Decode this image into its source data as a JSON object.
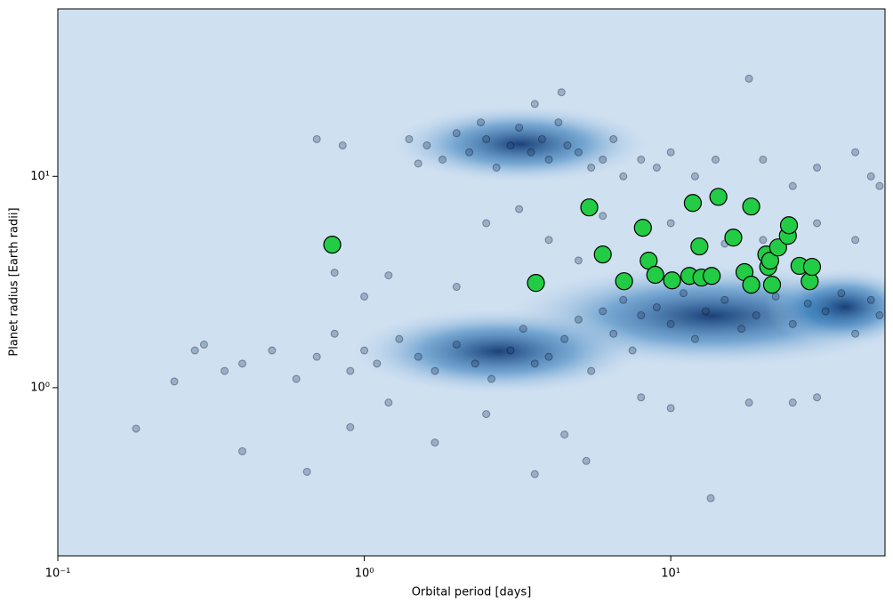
{
  "chart_data": {
    "type": "scatter",
    "xlabel": "Orbital period [days]",
    "ylabel": "Planet radius [Earth radii]",
    "xscale": "log",
    "yscale": "log",
    "xlim": [
      0.1,
      50
    ],
    "ylim": [
      0.16,
      62
    ],
    "xticks": [
      {
        "value": 0.1,
        "label": "10⁻¹"
      },
      {
        "value": 1,
        "label": "10⁰"
      },
      {
        "value": 10,
        "label": "10¹"
      }
    ],
    "yticks": [
      {
        "value": 1,
        "label": "10⁰"
      },
      {
        "value": 10,
        "label": "10¹"
      }
    ],
    "series": [
      {
        "color": "#1f3a6e",
        "x": [
          1.6,
          1.8,
          2.0,
          2.2,
          2.5,
          2.7,
          3.0,
          3.2,
          3.5,
          3.8,
          4.0,
          4.3,
          4.6,
          5.0,
          5.5,
          6.0,
          6.5,
          7.0,
          8.0,
          9.0,
          10,
          12,
          14,
          1.4,
          1.5,
          2.4,
          3.6,
          4.4,
          0.7,
          0.85,
          2.5,
          3.2,
          4,
          5,
          6,
          8,
          10,
          15,
          20,
          30,
          40,
          1.2,
          1.0,
          0.8,
          2.0,
          0.3,
          0.35,
          0.4,
          0.5,
          0.6,
          0.7,
          0.8,
          0.9,
          1.0,
          1.1,
          1.3,
          1.5,
          1.7,
          2.0,
          2.3,
          2.6,
          3.0,
          3.3,
          3.6,
          4.0,
          4.5,
          5.0,
          5.5,
          6.0,
          6.5,
          7.0,
          7.5,
          8.0,
          9.0,
          10,
          11,
          12,
          13,
          15,
          17,
          19,
          22,
          25,
          28,
          32,
          36,
          40,
          45,
          48,
          0.18,
          0.24,
          0.28,
          0.4,
          0.65,
          0.9,
          1.7,
          3.6,
          5.3,
          13.5,
          18,
          25,
          30,
          8,
          10,
          4.5,
          2.5,
          1.2,
          18,
          20,
          25,
          30,
          40,
          45,
          48
        ],
        "values": [
          14,
          12,
          16,
          13,
          15,
          11,
          14,
          17,
          13,
          15,
          12,
          18,
          14,
          13,
          11,
          12,
          15,
          10,
          12,
          11,
          13,
          10,
          12,
          15,
          11.5,
          18,
          22,
          25,
          15,
          14,
          6,
          7,
          5,
          4,
          6.5,
          5.5,
          6,
          4.8,
          5,
          6,
          5,
          3.4,
          2.7,
          3.5,
          3.0,
          1.6,
          1.2,
          1.3,
          1.5,
          1.1,
          1.4,
          1.8,
          1.2,
          1.5,
          1.3,
          1.7,
          1.4,
          1.2,
          1.6,
          1.3,
          1.1,
          1.5,
          1.9,
          1.3,
          1.4,
          1.7,
          2.1,
          1.2,
          2.3,
          1.8,
          2.6,
          1.5,
          2.2,
          2.4,
          2.0,
          2.8,
          1.7,
          2.3,
          2.6,
          1.9,
          2.2,
          2.7,
          2.0,
          2.5,
          2.3,
          2.8,
          1.8,
          2.6,
          2.2,
          0.64,
          1.07,
          1.5,
          0.5,
          0.4,
          0.65,
          0.55,
          0.39,
          0.45,
          0.3,
          0.85,
          0.85,
          0.9,
          0.9,
          0.8,
          0.6,
          0.75,
          0.85,
          29,
          12,
          9,
          11,
          13,
          10,
          9
        ]
      },
      {
        "color": "#22cc44",
        "x": [
          0.786,
          3.63,
          5.42,
          6.0,
          7.04,
          8.11,
          8.47,
          8.9,
          10.1,
          11.5,
          11.8,
          12.4,
          12.6,
          13.6,
          14.3,
          16.0,
          17.4,
          18.3,
          18.3,
          20.5,
          20.8,
          21.1,
          21.4,
          22.4,
          24.1,
          24.3,
          26.3,
          28.4,
          28.9
        ],
        "values": [
          4.75,
          3.13,
          7.13,
          4.27,
          3.19,
          5.71,
          3.99,
          3.42,
          3.22,
          3.38,
          7.48,
          4.66,
          3.32,
          3.38,
          8.0,
          5.13,
          3.52,
          7.2,
          3.07,
          4.27,
          3.73,
          3.99,
          3.07,
          4.61,
          5.23,
          5.87,
          3.77,
          3.19,
          3.73
        ]
      }
    ]
  }
}
